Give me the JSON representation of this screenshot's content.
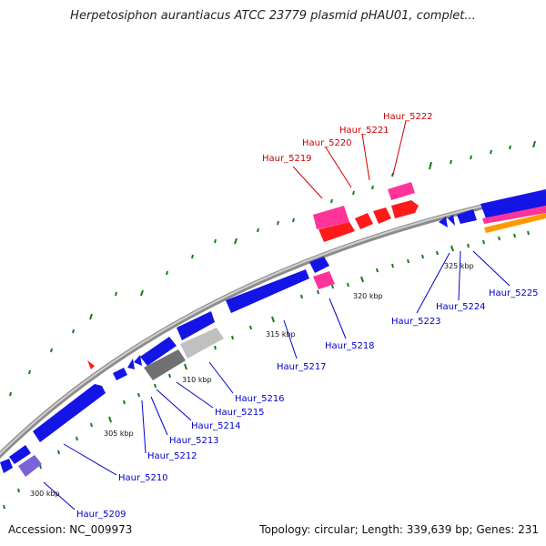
{
  "title": "Herpetosiphon aurantiacus ATCC 23779 plasmid pHAU01, complet...",
  "footer": {
    "accession": "Accession: NC_009973",
    "summary": "Topology: circular; Length: 339,639 bp; Genes: 231"
  },
  "colors": {
    "backbone": "#8c8c8c",
    "forward_gene": "#1414e6",
    "highlight_gene": "#ff1a1a",
    "pink_gene": "#ff3399",
    "grey_gene": "#707070",
    "light_grey_gene": "#c0c0c0",
    "violet_gene": "#7a63d6",
    "orange_feature": "#ff9900",
    "tick_mark": "#1a7a1a",
    "red_label": "#cc0000",
    "blue_label": "#0000cc"
  },
  "scale_labels": [
    "300 kbp",
    "305 kbp",
    "310 kbp",
    "315 kbp",
    "320 kbp",
    "325 kbp"
  ],
  "gene_labels": [
    {
      "id": "Haur_5209",
      "color": "blue"
    },
    {
      "id": "Haur_5210",
      "color": "blue"
    },
    {
      "id": "Haur_5212",
      "color": "blue"
    },
    {
      "id": "Haur_5213",
      "color": "blue"
    },
    {
      "id": "Haur_5214",
      "color": "blue"
    },
    {
      "id": "Haur_5215",
      "color": "blue"
    },
    {
      "id": "Haur_5216",
      "color": "blue"
    },
    {
      "id": "Haur_5217",
      "color": "blue"
    },
    {
      "id": "Haur_5218",
      "color": "blue"
    },
    {
      "id": "Haur_5219",
      "color": "red"
    },
    {
      "id": "Haur_5220",
      "color": "red"
    },
    {
      "id": "Haur_5221",
      "color": "red"
    },
    {
      "id": "Haur_5222",
      "color": "red"
    },
    {
      "id": "Haur_5223",
      "color": "blue"
    },
    {
      "id": "Haur_5224",
      "color": "blue"
    },
    {
      "id": "Haur_5225",
      "color": "blue"
    }
  ]
}
